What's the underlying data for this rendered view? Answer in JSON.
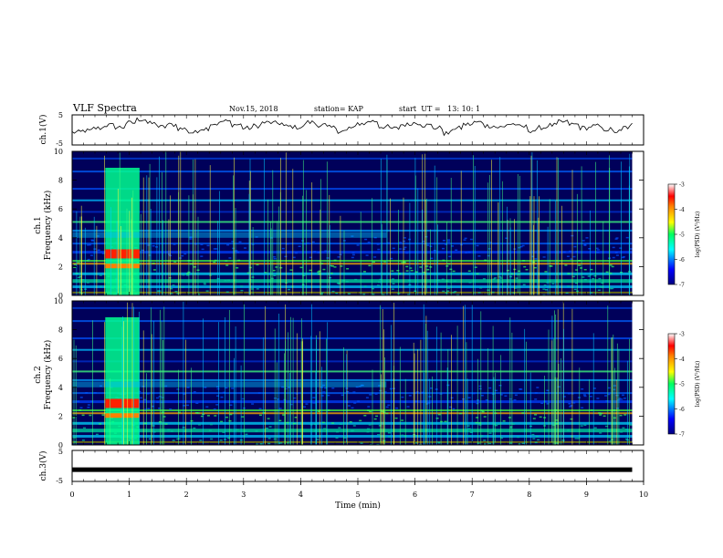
{
  "header": {
    "title": "VLF Spectra",
    "date": "Nov.15, 2018",
    "station": "station= KAP",
    "start": "start  UT =   13: 10: 1"
  },
  "chart_data": [
    {
      "type": "line",
      "panel": "ch1-waveform",
      "ylabel": "ch.1(V)",
      "ylim": [
        -5,
        5
      ],
      "yticks": [
        "5",
        "-5"
      ],
      "xlim": [
        0,
        9.8
      ],
      "description_values": [
        -0.8,
        -0.3,
        0.6,
        1.6,
        0.9,
        2.4,
        3.6,
        2.2,
        1.0,
        1.8,
        0.4,
        -0.9,
        0.5,
        2.1,
        2.9,
        1.8,
        0.6,
        1.4,
        2.5,
        2.3,
        1.2,
        0.9,
        2.6,
        1.7,
        0.8,
        -0.4,
        0.7,
        2.2,
        3.0,
        1.1,
        0.5,
        1.8,
        2.4,
        1.6,
        0.7,
        -1.2,
        0.6,
        1.9,
        2.6,
        1.4,
        0.9,
        2.0,
        1.1,
        -0.2,
        0.8,
        1.6,
        2.7,
        1.9,
        0.7,
        1.3,
        0.2,
        -0.6,
        0.9,
        1.8
      ]
    },
    {
      "type": "heatmap",
      "panel": "ch1-spectrogram",
      "ylabel_top": "ch.1",
      "ylabel": "Frequency (kHz)",
      "ylim": [
        0,
        10
      ],
      "yticks": [
        "0",
        "2",
        "4",
        "6",
        "8",
        "10"
      ],
      "colorbar": {
        "label": "log(PSD) (V²/Hz)",
        "range": [
          -7,
          -3
        ],
        "ticks": [
          "-3",
          "-4",
          "-5",
          "-6",
          "-7"
        ]
      }
    },
    {
      "type": "heatmap",
      "panel": "ch2-spectrogram",
      "ylabel_top": "ch.2",
      "ylabel": "Frequency (kHz)",
      "ylim": [
        0,
        10
      ],
      "yticks": [
        "0",
        "2",
        "4",
        "6",
        "8",
        "10"
      ],
      "colorbar": {
        "label": "log(PSD) (V²/Hz)",
        "range": [
          -7,
          -3
        ],
        "ticks": [
          "-3",
          "-4",
          "-5",
          "-6",
          "-7"
        ]
      }
    },
    {
      "type": "line",
      "panel": "ch3-waveform",
      "ylabel": "ch.3(V)",
      "ylim": [
        -5,
        5
      ],
      "yticks": [
        "5",
        "-5"
      ],
      "x": [
        0,
        9.8
      ],
      "values": [
        -1.2,
        -1.2
      ],
      "xlabel": "Time  (min)",
      "xlim": [
        0,
        10
      ],
      "xticks": [
        "0",
        "1",
        "2",
        "3",
        "4",
        "5",
        "6",
        "7",
        "8",
        "9",
        "10"
      ]
    }
  ]
}
